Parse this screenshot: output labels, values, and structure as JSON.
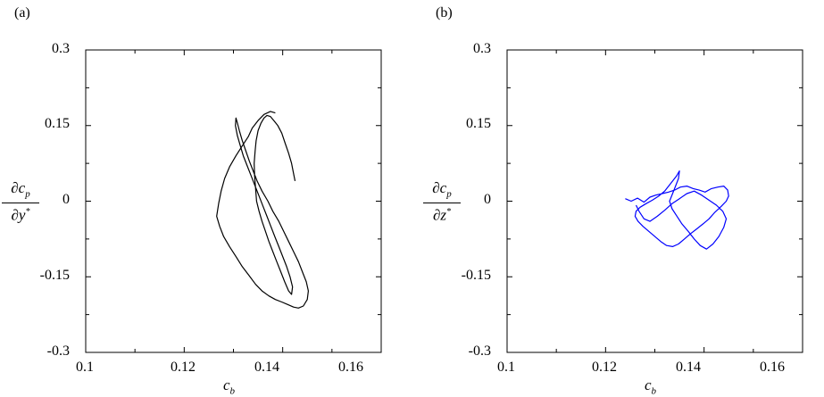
{
  "chart_data": [
    {
      "type": "line",
      "panel_label": "(a)",
      "xlabel_main": "c",
      "xlabel_sub": "b",
      "ylabel_num_main": "∂c",
      "ylabel_num_sub": "p",
      "ylabel_den_main": "∂y",
      "ylabel_den_sup": "*",
      "xlim": [
        0.1,
        0.16
      ],
      "ylim": [
        -0.3,
        0.3
      ],
      "xticks": [
        "0.1",
        "0.12",
        "0.14",
        "0.16"
      ],
      "yticks": [
        "0.3",
        "0.15",
        "0",
        "-0.15",
        "-0.3"
      ],
      "grid": false,
      "series": [
        {
          "color": "#000000",
          "x": [
            0.1385,
            0.1375,
            0.1362,
            0.135,
            0.1338,
            0.133,
            0.1318,
            0.1305,
            0.1292,
            0.1282,
            0.1275,
            0.127,
            0.1266,
            0.1272,
            0.128,
            0.1292,
            0.1305,
            0.1318,
            0.1332,
            0.1345,
            0.1358,
            0.1372,
            0.1385,
            0.1398,
            0.141,
            0.1422,
            0.1432,
            0.1442,
            0.145,
            0.1452,
            0.1448,
            0.144,
            0.1432,
            0.1422,
            0.1412,
            0.1402,
            0.1392,
            0.138,
            0.137,
            0.1358,
            0.1348,
            0.134,
            0.1332,
            0.1325,
            0.1318,
            0.1312,
            0.1308,
            0.1305,
            0.1304,
            0.1308,
            0.1314,
            0.132,
            0.1328,
            0.1336,
            0.1344,
            0.1352,
            0.136,
            0.1368,
            0.1376,
            0.1384,
            0.1392,
            0.14,
            0.1408,
            0.1415,
            0.142,
            0.1418,
            0.1412,
            0.1404,
            0.1396,
            0.1388,
            0.138,
            0.1372,
            0.1365,
            0.1358,
            0.1352,
            0.1347,
            0.1345,
            0.1343,
            0.1342,
            0.1344,
            0.1346,
            0.135,
            0.1356,
            0.1362,
            0.1368,
            0.1375,
            0.1382,
            0.139,
            0.1398,
            0.1405,
            0.1412,
            0.1418,
            0.1422,
            0.1425
          ],
          "y": [
            0.175,
            0.178,
            0.172,
            0.16,
            0.145,
            0.128,
            0.11,
            0.09,
            0.068,
            0.045,
            0.02,
            -0.005,
            -0.03,
            -0.05,
            -0.07,
            -0.09,
            -0.11,
            -0.13,
            -0.148,
            -0.165,
            -0.178,
            -0.188,
            -0.195,
            -0.2,
            -0.205,
            -0.21,
            -0.212,
            -0.208,
            -0.195,
            -0.178,
            -0.16,
            -0.14,
            -0.12,
            -0.1,
            -0.08,
            -0.06,
            -0.04,
            -0.02,
            0.0,
            0.02,
            0.04,
            0.06,
            0.08,
            0.1,
            0.12,
            0.14,
            0.155,
            0.165,
            0.15,
            0.13,
            0.11,
            0.09,
            0.07,
            0.05,
            0.03,
            0.01,
            -0.01,
            -0.03,
            -0.05,
            -0.07,
            -0.09,
            -0.11,
            -0.13,
            -0.15,
            -0.17,
            -0.185,
            -0.178,
            -0.16,
            -0.14,
            -0.12,
            -0.1,
            -0.08,
            -0.06,
            -0.04,
            -0.02,
            0.0,
            0.025,
            0.05,
            0.075,
            0.1,
            0.12,
            0.14,
            0.155,
            0.165,
            0.17,
            0.168,
            0.16,
            0.15,
            0.135,
            0.115,
            0.095,
            0.075,
            0.055,
            0.04
          ]
        }
      ]
    },
    {
      "type": "line",
      "panel_label": "(b)",
      "xlabel_main": "c",
      "xlabel_sub": "b",
      "ylabel_num_main": "∂c",
      "ylabel_num_sub": "p",
      "ylabel_den_main": "∂z",
      "ylabel_den_sup": "*",
      "xlim": [
        0.1,
        0.16
      ],
      "ylim": [
        -0.3,
        0.3
      ],
      "xticks": [
        "0.1",
        "0.12",
        "0.14",
        "0.16"
      ],
      "yticks": [
        "0.3",
        "0.15",
        "0",
        "-0.15",
        "-0.3"
      ],
      "grid": false,
      "series": [
        {
          "color": "#0000ff",
          "x": [
            0.124,
            0.1252,
            0.1265,
            0.1278,
            0.129,
            0.1302,
            0.1315,
            0.1328,
            0.134,
            0.1352,
            0.1365,
            0.1378,
            0.139,
            0.1402,
            0.1415,
            0.1428,
            0.144,
            0.1448,
            0.145,
            0.1445,
            0.1435,
            0.1422,
            0.141,
            0.1398,
            0.1385,
            0.1372,
            0.136,
            0.1348,
            0.1336,
            0.1324,
            0.1312,
            0.13,
            0.1288,
            0.1276,
            0.1266,
            0.126,
            0.1262,
            0.127,
            0.1282,
            0.1295,
            0.1308,
            0.132,
            0.1332,
            0.1344,
            0.135,
            0.1348,
            0.1342,
            0.1336,
            0.133,
            0.1335,
            0.1345,
            0.1355,
            0.1368,
            0.138,
            0.1392,
            0.1405,
            0.1418,
            0.143,
            0.144,
            0.1445,
            0.1438,
            0.1425,
            0.141,
            0.1395,
            0.138,
            0.1365,
            0.135,
            0.1335,
            0.132,
            0.1305,
            0.129,
            0.1278,
            0.1268,
            0.1262
          ],
          "y": [
            0.005,
            0.0,
            0.006,
            -0.002,
            0.008,
            0.012,
            0.015,
            0.018,
            0.022,
            0.028,
            0.03,
            0.025,
            0.022,
            0.018,
            0.025,
            0.028,
            0.03,
            0.022,
            0.01,
            0.0,
            -0.01,
            -0.022,
            -0.035,
            -0.045,
            -0.055,
            -0.065,
            -0.075,
            -0.085,
            -0.09,
            -0.088,
            -0.08,
            -0.07,
            -0.06,
            -0.05,
            -0.04,
            -0.03,
            -0.02,
            -0.012,
            -0.005,
            0.002,
            0.01,
            0.02,
            0.035,
            0.05,
            0.06,
            0.045,
            0.03,
            0.015,
            0.0,
            -0.015,
            -0.03,
            -0.045,
            -0.06,
            -0.075,
            -0.088,
            -0.095,
            -0.085,
            -0.07,
            -0.052,
            -0.035,
            -0.02,
            -0.008,
            0.002,
            0.012,
            0.02,
            0.015,
            0.005,
            -0.005,
            -0.018,
            -0.03,
            -0.04,
            -0.035,
            -0.02,
            -0.008
          ]
        }
      ]
    }
  ]
}
